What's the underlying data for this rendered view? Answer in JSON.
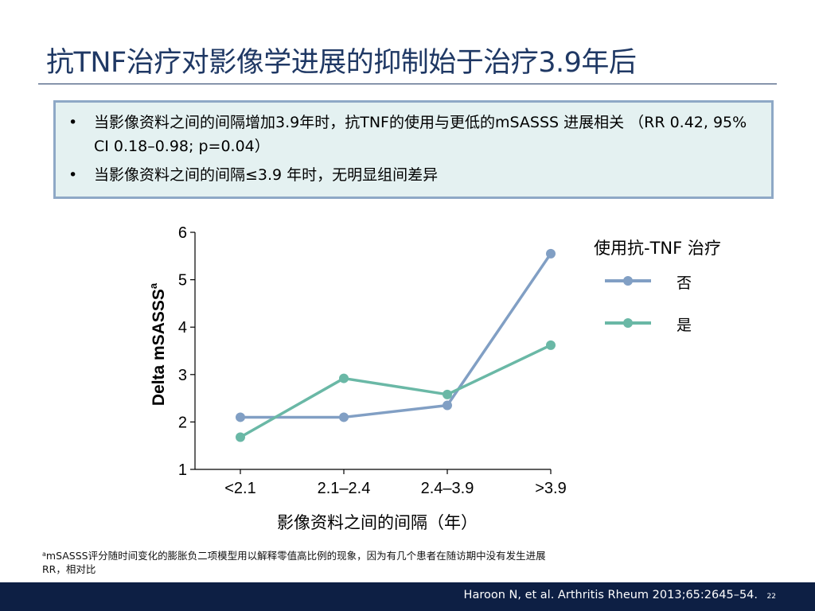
{
  "slide": {
    "title": "抗TNF治疗对影像学进展的抑制始于治疗3.9年后",
    "bullets": [
      "当影像资料之间的间隔增加3.9年时，抗TNF的使用与更低的mSASSS 进展相关 （RR 0.42, 95% CI 0.18–0.98; p=0.04）",
      "当影像资料之间的间隔≤3.9 年时，无明显组间差异"
    ],
    "bullet_symbol": "•",
    "footnote_sup": "a",
    "footnote_line1": "mSASSS评分随时间变化的膨胀负二项模型用以解释零值高比例的现象，因为有几个患者在随访期中没有发生进展",
    "footnote_line2": "RR，相对比",
    "citation": "Haroon N, et al. Arthritis Rheum 2013;65:2645–54.",
    "page_number": "22"
  },
  "chart_data": {
    "type": "line",
    "xlabel": "影像资料之间的间隔（年）",
    "ylabel": "Delta mSASSS",
    "ylabel_superscript": "a",
    "categories": [
      "<2.1",
      "2.1–2.4",
      "2.4–3.9",
      ">3.9"
    ],
    "ylim": [
      1,
      6
    ],
    "yticks": [
      1,
      2,
      3,
      4,
      5,
      6
    ],
    "legend_title": "使用抗-TNF 治疗",
    "legend_position": "right",
    "grid": false,
    "series": [
      {
        "name": "否",
        "color": "#819fc4",
        "values": [
          2.1,
          2.1,
          2.35,
          5.55
        ]
      },
      {
        "name": "是",
        "color": "#6ab8a6",
        "values": [
          1.68,
          2.92,
          2.58,
          3.62
        ]
      }
    ]
  }
}
